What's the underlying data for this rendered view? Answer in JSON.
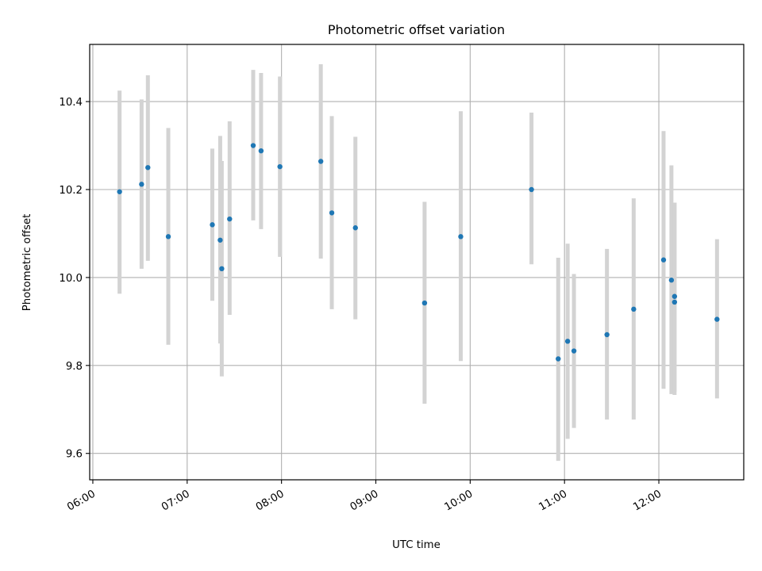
{
  "chart_data": {
    "type": "scatter",
    "title": "Photometric offset variation",
    "xlabel": "UTC time",
    "ylabel": "Photometric offset",
    "x_ticks": [
      "06:00",
      "07:00",
      "08:00",
      "09:00",
      "10:00",
      "11:00",
      "12:00"
    ],
    "y_ticks": [
      "9.6",
      "9.8",
      "10.0",
      "10.2",
      "10.4"
    ],
    "xlim": [
      "05:58",
      "12:54"
    ],
    "ylim": [
      9.54,
      10.53
    ],
    "grid": true,
    "colors": {
      "marker": "#1f77b4",
      "errorbar": "#d3d3d3",
      "grid": "#b0b0b0"
    },
    "series": [
      {
        "points": [
          {
            "x": "06:17",
            "y": 10.195,
            "ylow": 9.963,
            "yhigh": 10.425
          },
          {
            "x": "06:31",
            "y": 10.212,
            "ylow": 10.02,
            "yhigh": 10.405
          },
          {
            "x": "06:35",
            "y": 10.25,
            "ylow": 10.038,
            "yhigh": 10.46
          },
          {
            "x": "06:48",
            "y": 10.093,
            "ylow": 9.847,
            "yhigh": 10.34
          },
          {
            "x": "07:16",
            "y": 10.12,
            "ylow": 9.947,
            "yhigh": 10.293
          },
          {
            "x": "07:21",
            "y": 10.085,
            "ylow": 9.85,
            "yhigh": 10.322
          },
          {
            "x": "07:22",
            "y": 10.02,
            "ylow": 9.775,
            "yhigh": 10.265
          },
          {
            "x": "07:27",
            "y": 10.133,
            "ylow": 9.915,
            "yhigh": 10.355
          },
          {
            "x": "07:42",
            "y": 10.3,
            "ylow": 10.13,
            "yhigh": 10.472
          },
          {
            "x": "07:47",
            "y": 10.288,
            "ylow": 10.11,
            "yhigh": 10.465
          },
          {
            "x": "07:59",
            "y": 10.252,
            "ylow": 10.047,
            "yhigh": 10.457
          },
          {
            "x": "08:25",
            "y": 10.264,
            "ylow": 10.043,
            "yhigh": 10.485
          },
          {
            "x": "08:32",
            "y": 10.147,
            "ylow": 9.928,
            "yhigh": 10.367
          },
          {
            "x": "08:47",
            "y": 10.113,
            "ylow": 9.905,
            "yhigh": 10.32
          },
          {
            "x": "09:31",
            "y": 9.942,
            "ylow": 9.713,
            "yhigh": 10.172
          },
          {
            "x": "09:54",
            "y": 10.093,
            "ylow": 9.81,
            "yhigh": 10.378
          },
          {
            "x": "10:39",
            "y": 10.2,
            "ylow": 10.03,
            "yhigh": 10.375
          },
          {
            "x": "10:56",
            "y": 9.815,
            "ylow": 9.583,
            "yhigh": 10.045
          },
          {
            "x": "11:02",
            "y": 9.855,
            "ylow": 9.633,
            "yhigh": 10.077
          },
          {
            "x": "11:06",
            "y": 9.833,
            "ylow": 9.658,
            "yhigh": 10.008
          },
          {
            "x": "11:27",
            "y": 9.87,
            "ylow": 9.677,
            "yhigh": 10.065
          },
          {
            "x": "11:44",
            "y": 9.928,
            "ylow": 9.677,
            "yhigh": 10.18
          },
          {
            "x": "12:03",
            "y": 10.04,
            "ylow": 9.747,
            "yhigh": 10.333
          },
          {
            "x": "12:08",
            "y": 9.994,
            "ylow": 9.735,
            "yhigh": 10.255
          },
          {
            "x": "12:10",
            "y": 9.944,
            "ylow": 9.733,
            "yhigh": 10.17
          },
          {
            "x": "12:10",
            "y": 9.957,
            "ylow": 9.74,
            "yhigh": 10.17
          },
          {
            "x": "12:37",
            "y": 9.905,
            "ylow": 9.725,
            "yhigh": 10.087
          }
        ]
      }
    ]
  }
}
